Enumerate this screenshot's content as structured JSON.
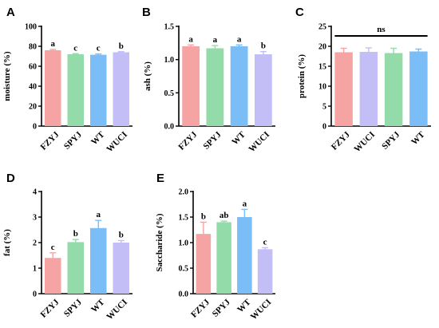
{
  "colors": {
    "FZYJ": "#F5A3A3",
    "SPYJ": "#93DBA8",
    "WT": "#7ABDF7",
    "WUCI": "#C3BEF5",
    "error": "#f2a0a0"
  },
  "chart_data": [
    {
      "type": "bar",
      "panel": "A",
      "ylabel": "moisture (%)",
      "ylim": [
        0,
        100
      ],
      "yticks": [
        0,
        20,
        40,
        60,
        80,
        100
      ],
      "categories": [
        "FZYJ",
        "SPYJ",
        "WT",
        "WUCI"
      ],
      "values": [
        76,
        72,
        71.5,
        74
      ],
      "errors": [
        0.8,
        0.6,
        0.8,
        0.6
      ],
      "letters": [
        "a",
        "c",
        "c",
        "b"
      ]
    },
    {
      "type": "bar",
      "panel": "B",
      "ylabel": "ash (%)",
      "ylim": [
        0,
        1.5
      ],
      "yticks": [
        0.0,
        0.5,
        1.0,
        1.5
      ],
      "categories": [
        "FZYJ",
        "SPYJ",
        "WT",
        "WUCI"
      ],
      "values": [
        1.2,
        1.17,
        1.2,
        1.08
      ],
      "errors": [
        0.02,
        0.04,
        0.02,
        0.04
      ],
      "letters": [
        "a",
        "a",
        "a",
        "b"
      ]
    },
    {
      "type": "bar",
      "panel": "C",
      "ylabel": "protein (%)",
      "ylim": [
        0,
        25
      ],
      "yticks": [
        0,
        5,
        10,
        15,
        20,
        25
      ],
      "categories": [
        "FZYJ",
        "WUCI",
        "SPYJ",
        "WT"
      ],
      "values": [
        18.5,
        18.6,
        18.3,
        18.7
      ],
      "errors": [
        1.0,
        1.0,
        1.2,
        0.6
      ],
      "letters": [],
      "ns_label": "ns"
    },
    {
      "type": "bar",
      "panel": "D",
      "ylabel": "fat (%)",
      "ylim": [
        0,
        4
      ],
      "yticks": [
        0,
        1,
        2,
        3,
        4
      ],
      "categories": [
        "FZYJ",
        "SPYJ",
        "WT",
        "WUCI"
      ],
      "values": [
        1.4,
        2.02,
        2.57,
        2.0
      ],
      "errors": [
        0.2,
        0.1,
        0.3,
        0.08
      ],
      "letters": [
        "c",
        "b",
        "a",
        "b"
      ]
    },
    {
      "type": "bar",
      "panel": "E",
      "ylabel": "Saccharide (%)",
      "ylim": [
        0,
        2.0
      ],
      "yticks": [
        0.0,
        0.5,
        1.0,
        1.5,
        2.0
      ],
      "categories": [
        "FZYJ",
        "SPYJ",
        "WT",
        "WUCI"
      ],
      "values": [
        1.17,
        1.4,
        1.5,
        0.87
      ],
      "errors": [
        0.23,
        0.02,
        0.15,
        0.03
      ],
      "letters": [
        "b",
        "ab",
        "a",
        "c"
      ]
    }
  ]
}
